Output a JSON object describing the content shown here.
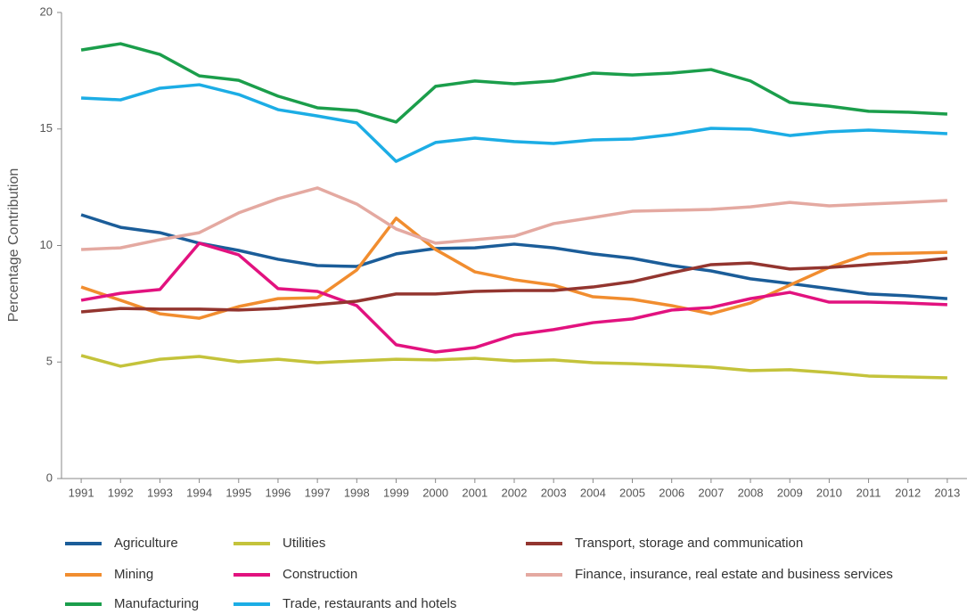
{
  "chart_data": {
    "type": "line",
    "y_label": "Percentage Contribution",
    "categories": [
      "1991",
      "1992",
      "1993",
      "1994",
      "1995",
      "1996",
      "1997",
      "1998",
      "1999",
      "2000",
      "2001",
      "2002",
      "2003",
      "2004",
      "2005",
      "2006",
      "2007",
      "2008",
      "2009",
      "2010",
      "2011",
      "2012",
      "2013"
    ],
    "ylim": [
      0,
      20
    ],
    "yticks": [
      0,
      5,
      10,
      15,
      20
    ],
    "grid": false,
    "series": [
      {
        "name": "Agriculture",
        "color": "#1b5d99",
        "values": [
          11.32,
          10.78,
          10.55,
          10.1,
          9.79,
          9.41,
          9.14,
          9.1,
          9.64,
          9.87,
          9.9,
          10.06,
          9.9,
          9.64,
          9.45,
          9.14,
          8.91,
          8.57,
          8.37,
          8.15,
          7.92,
          7.84,
          7.72
        ]
      },
      {
        "name": "Mining",
        "color": "#f18d2f",
        "values": [
          8.22,
          7.65,
          7.07,
          6.88,
          7.38,
          7.72,
          7.76,
          8.95,
          11.17,
          9.83,
          8.87,
          8.53,
          8.3,
          7.8,
          7.69,
          7.42,
          7.07,
          7.53,
          8.3,
          9.06,
          9.64,
          9.67,
          9.71
        ]
      },
      {
        "name": "Manufacturing",
        "color": "#1b9e4b",
        "values": [
          18.39,
          18.66,
          18.2,
          17.28,
          17.09,
          16.41,
          15.91,
          15.79,
          15.3,
          16.83,
          17.06,
          16.94,
          17.06,
          17.4,
          17.32,
          17.4,
          17.55,
          17.06,
          16.14,
          15.98,
          15.76,
          15.72,
          15.64
        ]
      },
      {
        "name": "Utilities",
        "color": "#c4c33b",
        "values": [
          5.28,
          4.82,
          5.12,
          5.24,
          5.01,
          5.12,
          4.97,
          5.05,
          5.12,
          5.09,
          5.16,
          5.05,
          5.09,
          4.97,
          4.93,
          4.86,
          4.78,
          4.63,
          4.67,
          4.55,
          4.4,
          4.36,
          4.32
        ]
      },
      {
        "name": "Construction",
        "color": "#e2127f",
        "values": [
          7.65,
          7.95,
          8.11,
          10.1,
          9.6,
          8.15,
          8.03,
          7.42,
          5.74,
          5.43,
          5.62,
          6.16,
          6.39,
          6.69,
          6.85,
          7.23,
          7.34,
          7.72,
          7.99,
          7.57,
          7.57,
          7.53,
          7.46
        ]
      },
      {
        "name": "Trade, restaurants and hotels",
        "color": "#1cade5",
        "values": [
          16.33,
          16.25,
          16.75,
          16.9,
          16.48,
          15.83,
          15.56,
          15.26,
          13.61,
          14.42,
          14.61,
          14.46,
          14.38,
          14.53,
          14.57,
          14.76,
          15.03,
          14.99,
          14.72,
          14.88,
          14.95,
          14.88,
          14.8
        ]
      },
      {
        "name": "Transport, storage and communication",
        "color": "#93352f",
        "values": [
          7.15,
          7.3,
          7.27,
          7.27,
          7.23,
          7.3,
          7.46,
          7.61,
          7.92,
          7.92,
          8.03,
          8.07,
          8.07,
          8.22,
          8.45,
          8.83,
          9.18,
          9.25,
          8.99,
          9.06,
          9.18,
          9.29,
          9.45
        ]
      },
      {
        "name": "Finance, insurance, real estate and business services",
        "color": "#e4a9a1",
        "values": [
          9.83,
          9.9,
          10.25,
          10.55,
          11.4,
          12.01,
          12.47,
          11.78,
          10.71,
          10.1,
          10.25,
          10.4,
          10.94,
          11.2,
          11.47,
          11.51,
          11.55,
          11.66,
          11.85,
          11.7,
          11.78,
          11.85,
          11.93
        ]
      }
    ]
  }
}
